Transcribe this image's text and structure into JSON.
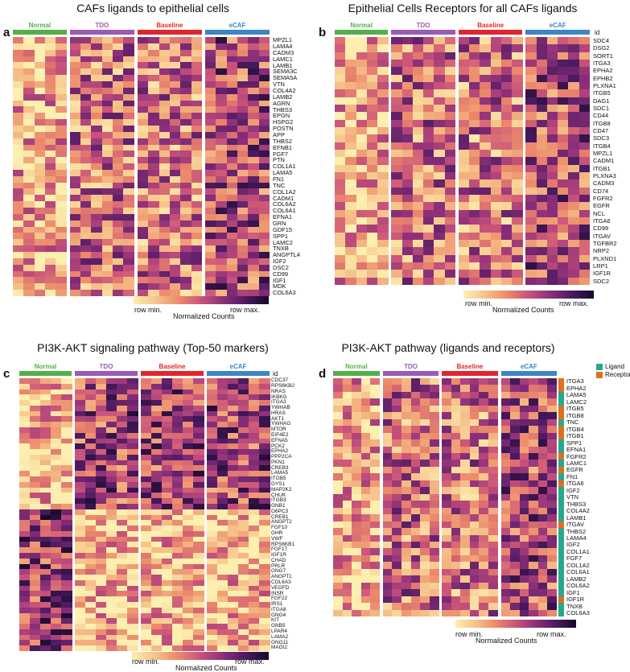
{
  "figure": {
    "colorbar": {
      "min_label": "row min.",
      "max_label": "row max.",
      "title": "Normalized Counts"
    },
    "groups": [
      "Normal",
      "TDO",
      "Baseline",
      "eCAF"
    ],
    "group_colors": {
      "Normal": "#52b04a",
      "TDO": "#9c59b5",
      "Baseline": "#e0262b",
      "eCAF": "#3b86c6"
    },
    "panels": {
      "a": {
        "label": "a",
        "title": "CAFs ligands to epithelial cells"
      },
      "b": {
        "label": "b",
        "title": "Epithelial Cells Receptors for all CAFs ligands",
        "id_header": "id"
      },
      "c": {
        "label": "c",
        "title": "PI3K-AKT signaling pathway (Top-50 markers)",
        "id_header": "id"
      },
      "d": {
        "label": "d",
        "title": "PI3K-AKT pathway (ligands and receptors)",
        "legend": [
          {
            "label": "Ligand",
            "color": "#26a88f"
          },
          {
            "label": "Receptor",
            "color": "#e0701e"
          }
        ]
      }
    }
  },
  "chart_data": [
    {
      "panel": "a",
      "type": "heatmap",
      "title": "CAFs ligands to epithelial cells",
      "columns_per_group": {
        "Normal": 5,
        "TDO": 6,
        "Baseline": 6,
        "eCAF": 6
      },
      "rows": [
        "MPZL1",
        "LAMA4",
        "CADM3",
        "LAMC1",
        "LAMB1",
        "SEMA3C",
        "SEMA5A",
        "VTN",
        "COL4A2",
        "LAMB2",
        "AGRN",
        "THBS3",
        "EPGN",
        "HSPG2",
        "POSTN",
        "APP",
        "THBS2",
        "EFNB1",
        "FGF7",
        "PTN",
        "COL1A1",
        "LAMA5",
        "FN1",
        "TNC",
        "COL1A2",
        "CADM1",
        "COL6A2",
        "COL6A1",
        "EFNA1",
        "GRN",
        "GDF15",
        "SPP1",
        "LAMC2",
        "TNXB",
        "ANGPTL4",
        "IGF2",
        "DSC2",
        "CD99",
        "IGF1",
        "MDK",
        "COL6A3"
      ],
      "colorbar": [
        "row min.",
        "row max."
      ]
    },
    {
      "panel": "b",
      "type": "heatmap",
      "title": "Epithelial Cells Receptors for all CAFs ligands",
      "columns_per_group": {
        "Normal": 5,
        "TDO": 6,
        "Baseline": 6,
        "eCAF": 6
      },
      "rows": [
        "SDC4",
        "DSG2",
        "SORT1",
        "ITGA3",
        "EPHA2",
        "EPHB2",
        "PLXNA1",
        "ITGB5",
        "DAG1",
        "SDC1",
        "CD44",
        "ITGB8",
        "CD47",
        "SDC3",
        "ITGB4",
        "MPZL1",
        "CADM1",
        "ITGB1",
        "PLXNA3",
        "CADM3",
        "CD74",
        "FGFR2",
        "EGFR",
        "NCL",
        "ITGA6",
        "CD99",
        "ITGAV",
        "TGFBR2",
        "NRP2",
        "PLXND1",
        "LRP1",
        "IGF1R",
        "SDC2"
      ],
      "colorbar": [
        "row min.",
        "row max."
      ]
    },
    {
      "panel": "c",
      "type": "heatmap",
      "title": "PI3K-AKT signaling pathway (Top-50 markers)",
      "columns_per_group": {
        "Normal": 5,
        "TDO": 6,
        "Baseline": 6,
        "eCAF": 6
      },
      "rows": [
        "CDC37",
        "RPS6KB2",
        "NRAS",
        "IKBKG",
        "ITGA3",
        "YWHAB",
        "HRAS",
        "AKT1",
        "YWHAG",
        "MTOR",
        "EIF4E2",
        "EFNA5",
        "PCK2",
        "EPHA2",
        "PPP2CA",
        "PKN1",
        "CREB3",
        "LAMA5",
        "ITGB5",
        "GYS1",
        "MAP2K2",
        "CHUK",
        "ITGB3",
        "GNB1",
        "G6PC3",
        "CREB1",
        "ANGPT2",
        "FGF10",
        "GHR",
        "VWF",
        "RPS6KB1",
        "FGF17",
        "IGF1R",
        "CHAD",
        "PRLR",
        "GNG7",
        "ANGPT1",
        "COL6A3",
        "VEGFD",
        "INSR",
        "FGF22",
        "IRS1",
        "ITGA8",
        "GNG4",
        "KIT",
        "GNB5",
        "LPAR4",
        "LAMA2",
        "GNG11",
        "MAGI2"
      ],
      "colorbar": [
        "row min.",
        "row max."
      ]
    },
    {
      "panel": "d",
      "type": "heatmap",
      "title": "PI3K-AKT pathway (ligands and receptors)",
      "columns_per_group": {
        "Normal": 5,
        "TDO": 6,
        "Baseline": 6,
        "eCAF": 6
      },
      "rows": [
        "ITGA3",
        "EPHA2",
        "LAMA5",
        "LAMC2",
        "ITGB5",
        "ITGB8",
        "TNC",
        "ITGB4",
        "ITGB1",
        "SPP1",
        "EFNA1",
        "FGFR2",
        "LAMC1",
        "EGFR",
        "FN1",
        "ITGA6",
        "IGF2",
        "VTN",
        "THBS3",
        "COL4A2",
        "LAMB1",
        "ITGAV",
        "THBS2",
        "LAMA4",
        "IGF2",
        "COL1A1",
        "FGF7",
        "COL1A2",
        "COL6A1",
        "LAMB2",
        "COL6A2",
        "IGF1",
        "IGF1R",
        "TNXB",
        "COL6A3"
      ],
      "row_types": [
        "Receptor",
        "Receptor",
        "Ligand",
        "Ligand",
        "Receptor",
        "Receptor",
        "Ligand",
        "Receptor",
        "Receptor",
        "Ligand",
        "Ligand",
        "Receptor",
        "Ligand",
        "Receptor",
        "Ligand",
        "Receptor",
        "Ligand",
        "Ligand",
        "Ligand",
        "Ligand",
        "Ligand",
        "Receptor",
        "Ligand",
        "Ligand",
        "Ligand",
        "Ligand",
        "Ligand",
        "Ligand",
        "Ligand",
        "Ligand",
        "Ligand",
        "Ligand",
        "Receptor",
        "Ligand",
        "Ligand"
      ],
      "colorbar": [
        "row min.",
        "row max."
      ]
    }
  ]
}
